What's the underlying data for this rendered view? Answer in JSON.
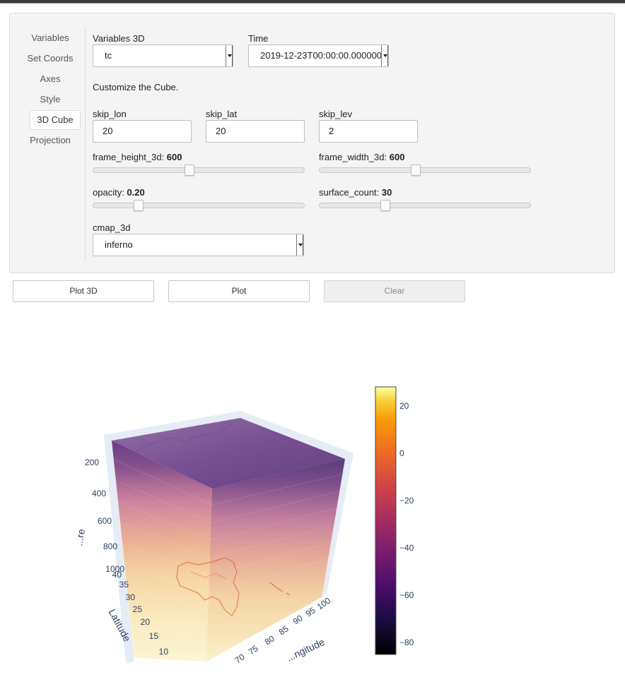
{
  "tabs": [
    "Variables",
    "Set Coords",
    "Axes",
    "Style",
    "3D Cube",
    "Projection"
  ],
  "active_tab": "3D Cube",
  "variables3d": {
    "label": "Variables 3D",
    "value": "tc"
  },
  "time": {
    "label": "Time",
    "value": "2019-12-23T00:00:00.000000"
  },
  "description": "Customize the Cube.",
  "skip_lon": {
    "label": "skip_lon",
    "value": "20"
  },
  "skip_lat": {
    "label": "skip_lat",
    "value": "20"
  },
  "skip_lev": {
    "label": "skip_lev",
    "value": "2"
  },
  "frame_height": {
    "label": "frame_height_3d: ",
    "value": "600",
    "fraction": 0.45
  },
  "frame_width": {
    "label": "frame_width_3d: ",
    "value": "600",
    "fraction": 0.45
  },
  "opacity": {
    "label": "opacity: ",
    "value": "0.20",
    "fraction": 0.2
  },
  "surface_count": {
    "label": "surface_count: ",
    "value": "30",
    "fraction": 0.3
  },
  "cmap": {
    "label": "cmap_3d",
    "value": "inferno"
  },
  "buttons": {
    "plot3d": "Plot 3D",
    "plot": "Plot",
    "clear": "Clear"
  },
  "chart_data": {
    "type": "volume",
    "colorscale": "inferno",
    "colorbar": {
      "range": [
        -85,
        28
      ],
      "ticks": [
        20,
        0,
        -20,
        -40,
        -60,
        -80
      ],
      "tick_labels": [
        "20",
        "0",
        "−20",
        "−40",
        "−60",
        "−80"
      ]
    },
    "z_axis": {
      "title": "...re",
      "ticks": [
        "200",
        "400",
        "600",
        "800",
        "1000"
      ]
    },
    "y_axis": {
      "title": "Latitude",
      "ticks": [
        "40",
        "35",
        "30",
        "25",
        "20",
        "15",
        "10"
      ]
    },
    "x_axis": {
      "title": "...ngitude",
      "ticks": [
        "70",
        "75",
        "80",
        "85",
        "90",
        "95",
        "100"
      ]
    }
  }
}
